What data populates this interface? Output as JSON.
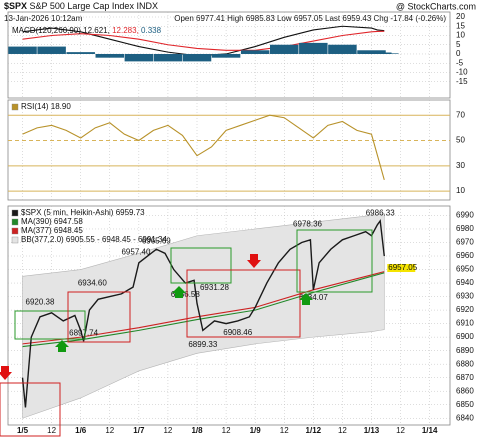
{
  "header": {
    "symbol": "$SPX",
    "name": "S&P 500 Large Cap Index",
    "exchange": "INDX",
    "source": "@ StockCharts.com",
    "date": "13-Jan-2026 10:12am",
    "quote": "Open 6977.41 High 6985.83 Low 6957.05 Last 6959.43 Chg -17.84 (-0.26%)"
  },
  "chart_data": [
    {
      "type": "line",
      "legend_label": "MACD(120,260,90)",
      "ylim": [
        -23.8,
        22.7
      ],
      "yticks": [
        -15,
        -10,
        -5,
        0,
        5,
        10,
        15,
        20
      ],
      "series": [
        {
          "name": "12.621,",
          "color": "#111111",
          "x": [
            0,
            0.5,
            1,
            1.5,
            2,
            2.5,
            3,
            3.5,
            4,
            4.5,
            5,
            5.5,
            6,
            6.1,
            6.22
          ],
          "values": [
            12,
            14,
            12,
            8,
            4,
            1,
            -1,
            0,
            4,
            9,
            13,
            15,
            14,
            13,
            12.621
          ]
        },
        {
          "name": "12.283,",
          "color": "#e0252a",
          "x": [
            0,
            0.5,
            1,
            1.5,
            2,
            2.5,
            3,
            3.5,
            4,
            4.5,
            5,
            5.5,
            6,
            6.1,
            6.22
          ],
          "values": [
            8,
            10,
            11,
            10,
            8,
            5,
            3,
            2,
            2,
            4,
            7,
            10,
            12,
            12.2,
            12.283
          ]
        },
        {
          "name": "0.338",
          "color": "#1d5f82",
          "style": "bar",
          "x": [
            0,
            0.5,
            1,
            1.5,
            2,
            2.5,
            3,
            3.5,
            4,
            4.5,
            5,
            5.5,
            6,
            6.1,
            6.22
          ],
          "values": [
            4,
            4,
            1,
            -2,
            -4,
            -4,
            -4,
            -2,
            2,
            5,
            6,
            5,
            2,
            0.8,
            0.338
          ]
        }
      ]
    },
    {
      "type": "line",
      "ylim": [
        3,
        82
      ],
      "yticks": [
        10,
        30,
        50,
        70
      ],
      "grid_color": "#d8b45a",
      "series": [
        {
          "name": "RSI(14) 18.90",
          "color": "#b8922a",
          "x": [
            0,
            0.25,
            0.5,
            0.75,
            1,
            1.25,
            1.5,
            1.75,
            2,
            2.25,
            2.5,
            2.75,
            3,
            3.25,
            3.5,
            3.75,
            4,
            4.25,
            4.5,
            4.75,
            5,
            5.25,
            5.5,
            5.75,
            6,
            6.22
          ],
          "values": [
            55,
            60,
            62,
            58,
            52,
            60,
            64,
            55,
            50,
            58,
            62,
            54,
            38,
            45,
            58,
            62,
            66,
            70,
            68,
            60,
            52,
            62,
            65,
            58,
            55,
            18.9
          ]
        }
      ]
    },
    {
      "type": "line",
      "ylim": [
        6835,
        6997
      ],
      "yticks": [
        6840,
        6850,
        6860,
        6870,
        6880,
        6890,
        6900,
        6910,
        6920,
        6930,
        6940,
        6950,
        6960,
        6970,
        6980,
        6990
      ],
      "xlim": [
        -0.25,
        7.35
      ],
      "xticks": [
        {
          "value": 0,
          "label": "1/5"
        },
        {
          "value": 0.5,
          "label": "12"
        },
        {
          "value": 1,
          "label": "1/6"
        },
        {
          "value": 1.5,
          "label": "12"
        },
        {
          "value": 2,
          "label": "1/7"
        },
        {
          "value": 2.5,
          "label": "12"
        },
        {
          "value": 3,
          "label": "1/8"
        },
        {
          "value": 3.5,
          "label": "12"
        },
        {
          "value": 4,
          "label": "1/9"
        },
        {
          "value": 4.5,
          "label": "12"
        },
        {
          "value": 5,
          "label": "1/12"
        },
        {
          "value": 5.5,
          "label": "12"
        },
        {
          "value": 6,
          "label": "1/13"
        },
        {
          "value": 6.5,
          "label": "12"
        },
        {
          "value": 7,
          "label": "1/14"
        }
      ],
      "series": [
        {
          "name": "BB(377,2.0) 6905.55 - 6948.45 - 6991.34",
          "color": "#e4e4e4",
          "x": [
            0,
            1,
            2,
            3,
            4,
            5,
            6,
            6.22
          ],
          "upper": [
            6945,
            6950,
            6962,
            6975,
            6980,
            6985,
            6990,
            6991.34
          ],
          "lower": [
            6840,
            6855,
            6875,
            6888,
            6895,
            6900,
            6904,
            6905.55
          ]
        },
        {
          "name": "MA(377) 6948.45",
          "color": "#cc2222",
          "x": [
            0,
            1,
            2,
            3,
            4,
            5,
            6,
            6.22
          ],
          "values": [
            6895,
            6900,
            6907,
            6915,
            6922,
            6935,
            6946,
            6948.45
          ]
        },
        {
          "name": "MA(390) 6947.58",
          "color": "#22882a",
          "x": [
            0,
            1,
            2,
            3,
            4,
            5,
            6,
            6.22
          ],
          "values": [
            6893,
            6898,
            6905,
            6913,
            6920,
            6933,
            6945,
            6947.58
          ]
        },
        {
          "name": "$SPX (5 min, Heikin-Ashi) 6959.73",
          "color": "#1a1a1a",
          "x": [
            0,
            0.05,
            0.15,
            0.3,
            0.5,
            0.7,
            0.9,
            1.0,
            1.05,
            1.15,
            1.3,
            1.5,
            1.7,
            1.9,
            2.0,
            2.15,
            2.3,
            2.45,
            2.6,
            2.8,
            2.95,
            3.0,
            3.1,
            3.3,
            3.5,
            3.7,
            3.9,
            4.0,
            4.2,
            4.4,
            4.6,
            4.8,
            4.95,
            5.0,
            5.1,
            5.3,
            5.5,
            5.7,
            5.9,
            6.0,
            6.1,
            6.15,
            6.22
          ],
          "values": [
            6870,
            6848,
            6900,
            6915,
            6918,
            6912,
            6916,
            6905,
            6897,
            6920,
            6928,
            6930,
            6932,
            6937,
            6955,
            6960,
            6965,
            6962,
            6950,
            6940,
            6942,
            6925,
            6905,
            6912,
            6910,
            6912,
            6915,
            6922,
            6940,
            6955,
            6965,
            6970,
            6972,
            6935,
            6955,
            6965,
            6972,
            6975,
            6978,
            6975,
            6983,
            6986,
            6960
          ]
        }
      ],
      "annotations": [
        {
          "x": 0.3,
          "y": 6920.38,
          "label": "6920.38"
        },
        {
          "x": 1.05,
          "y": 6897.74,
          "label": "6897.74"
        },
        {
          "x": 1.2,
          "y": 6934.6,
          "label": "6934.60"
        },
        {
          "x": 1.95,
          "y": 6957.4,
          "label": "6957.40"
        },
        {
          "x": 2.3,
          "y": 6965.69,
          "label": "6965.69"
        },
        {
          "x": 2.8,
          "y": 6936.58,
          "label": "6936.58"
        },
        {
          "x": 3.3,
          "y": 6931.28,
          "label": "6931.28"
        },
        {
          "x": 3.1,
          "y": 6899.33,
          "label": "6899.33"
        },
        {
          "x": 3.7,
          "y": 6908.46,
          "label": "6908.46"
        },
        {
          "x": 4.9,
          "y": 6978.36,
          "label": "6978.36"
        },
        {
          "x": 5.0,
          "y": 6934.07,
          "label": "6934.07"
        },
        {
          "x": 6.15,
          "y": 6986.33,
          "label": "6986.33"
        },
        {
          "x": 6.22,
          "y": 6957.05,
          "label": "6957.05"
        }
      ]
    }
  ]
}
